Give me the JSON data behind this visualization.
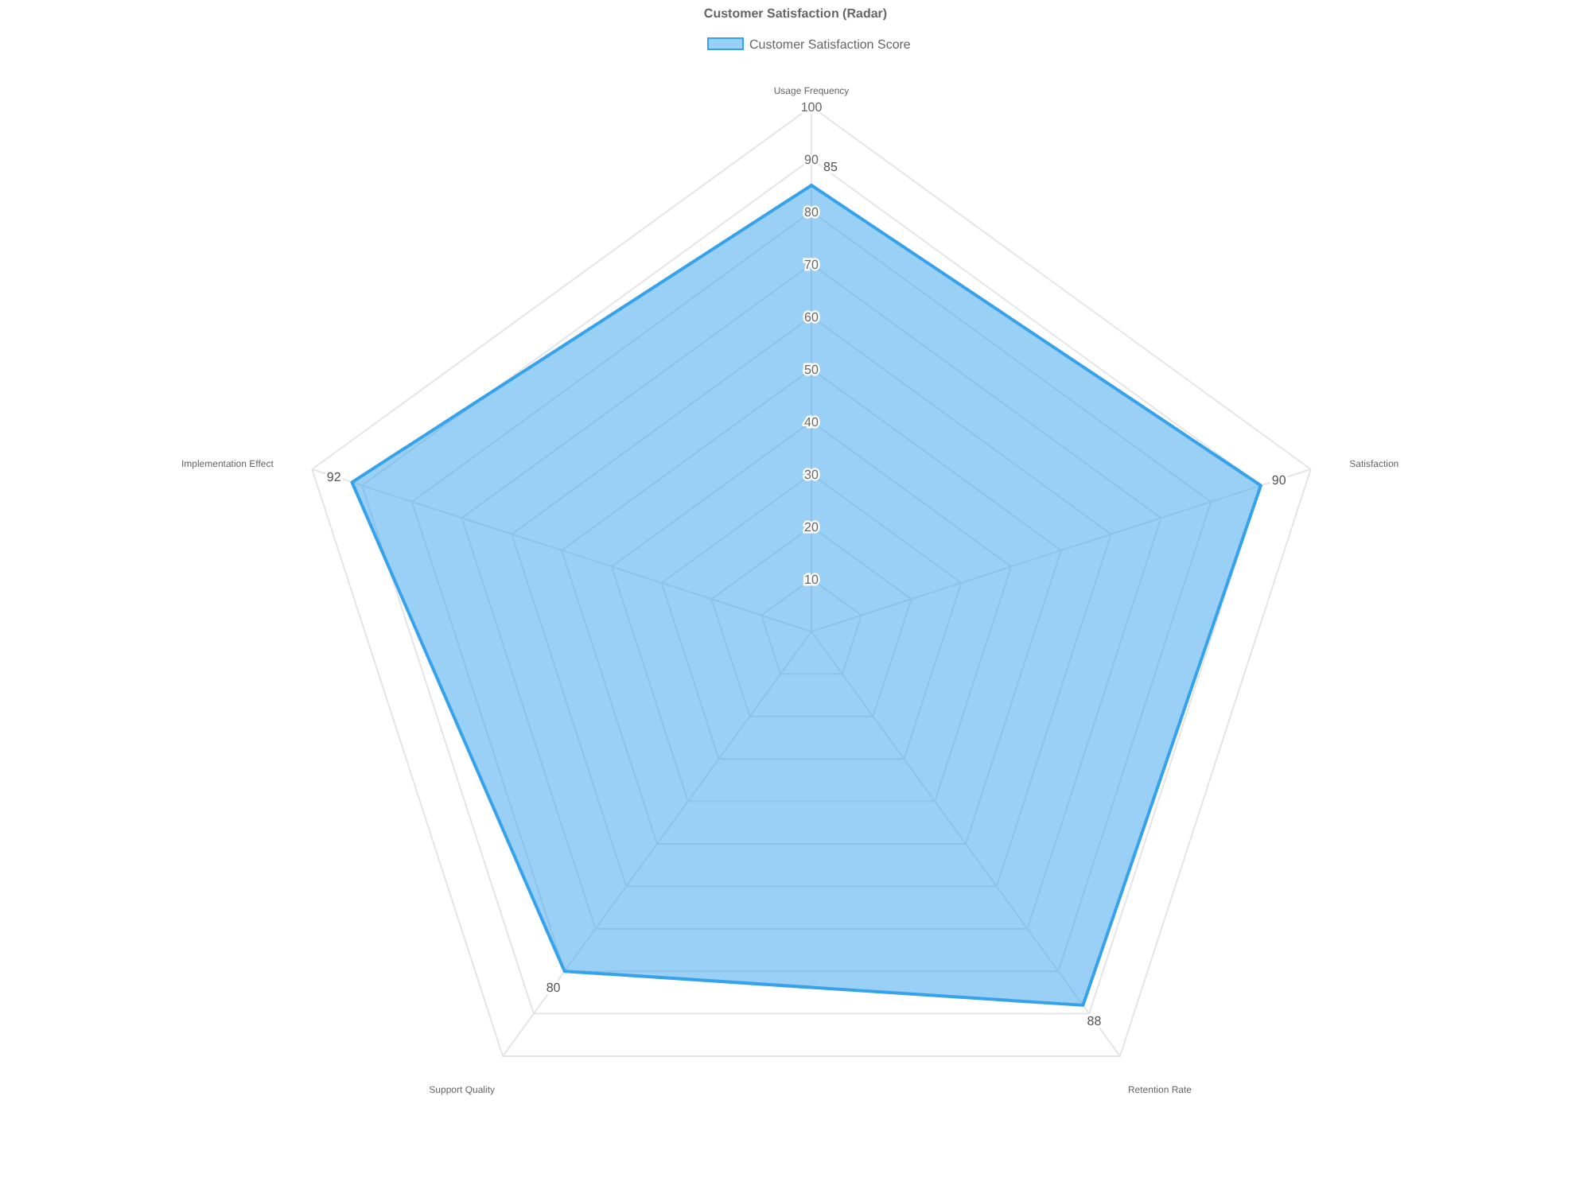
{
  "chart_data": {
    "type": "radar",
    "title": "Customer Satisfaction (Radar)",
    "categories": [
      "Usage Frequency",
      "Satisfaction",
      "Retention Rate",
      "Support Quality",
      "Implementation Effect"
    ],
    "series": [
      {
        "name": "Customer Satisfaction Score",
        "color": "#36a2eb",
        "values": [
          85,
          90,
          88,
          80,
          92
        ]
      }
    ],
    "ylim": [
      0,
      100
    ],
    "yticks": [
      10,
      20,
      30,
      40,
      50,
      60,
      70,
      80,
      90,
      100
    ],
    "grid": true,
    "legend": "top",
    "data_labels": true
  }
}
